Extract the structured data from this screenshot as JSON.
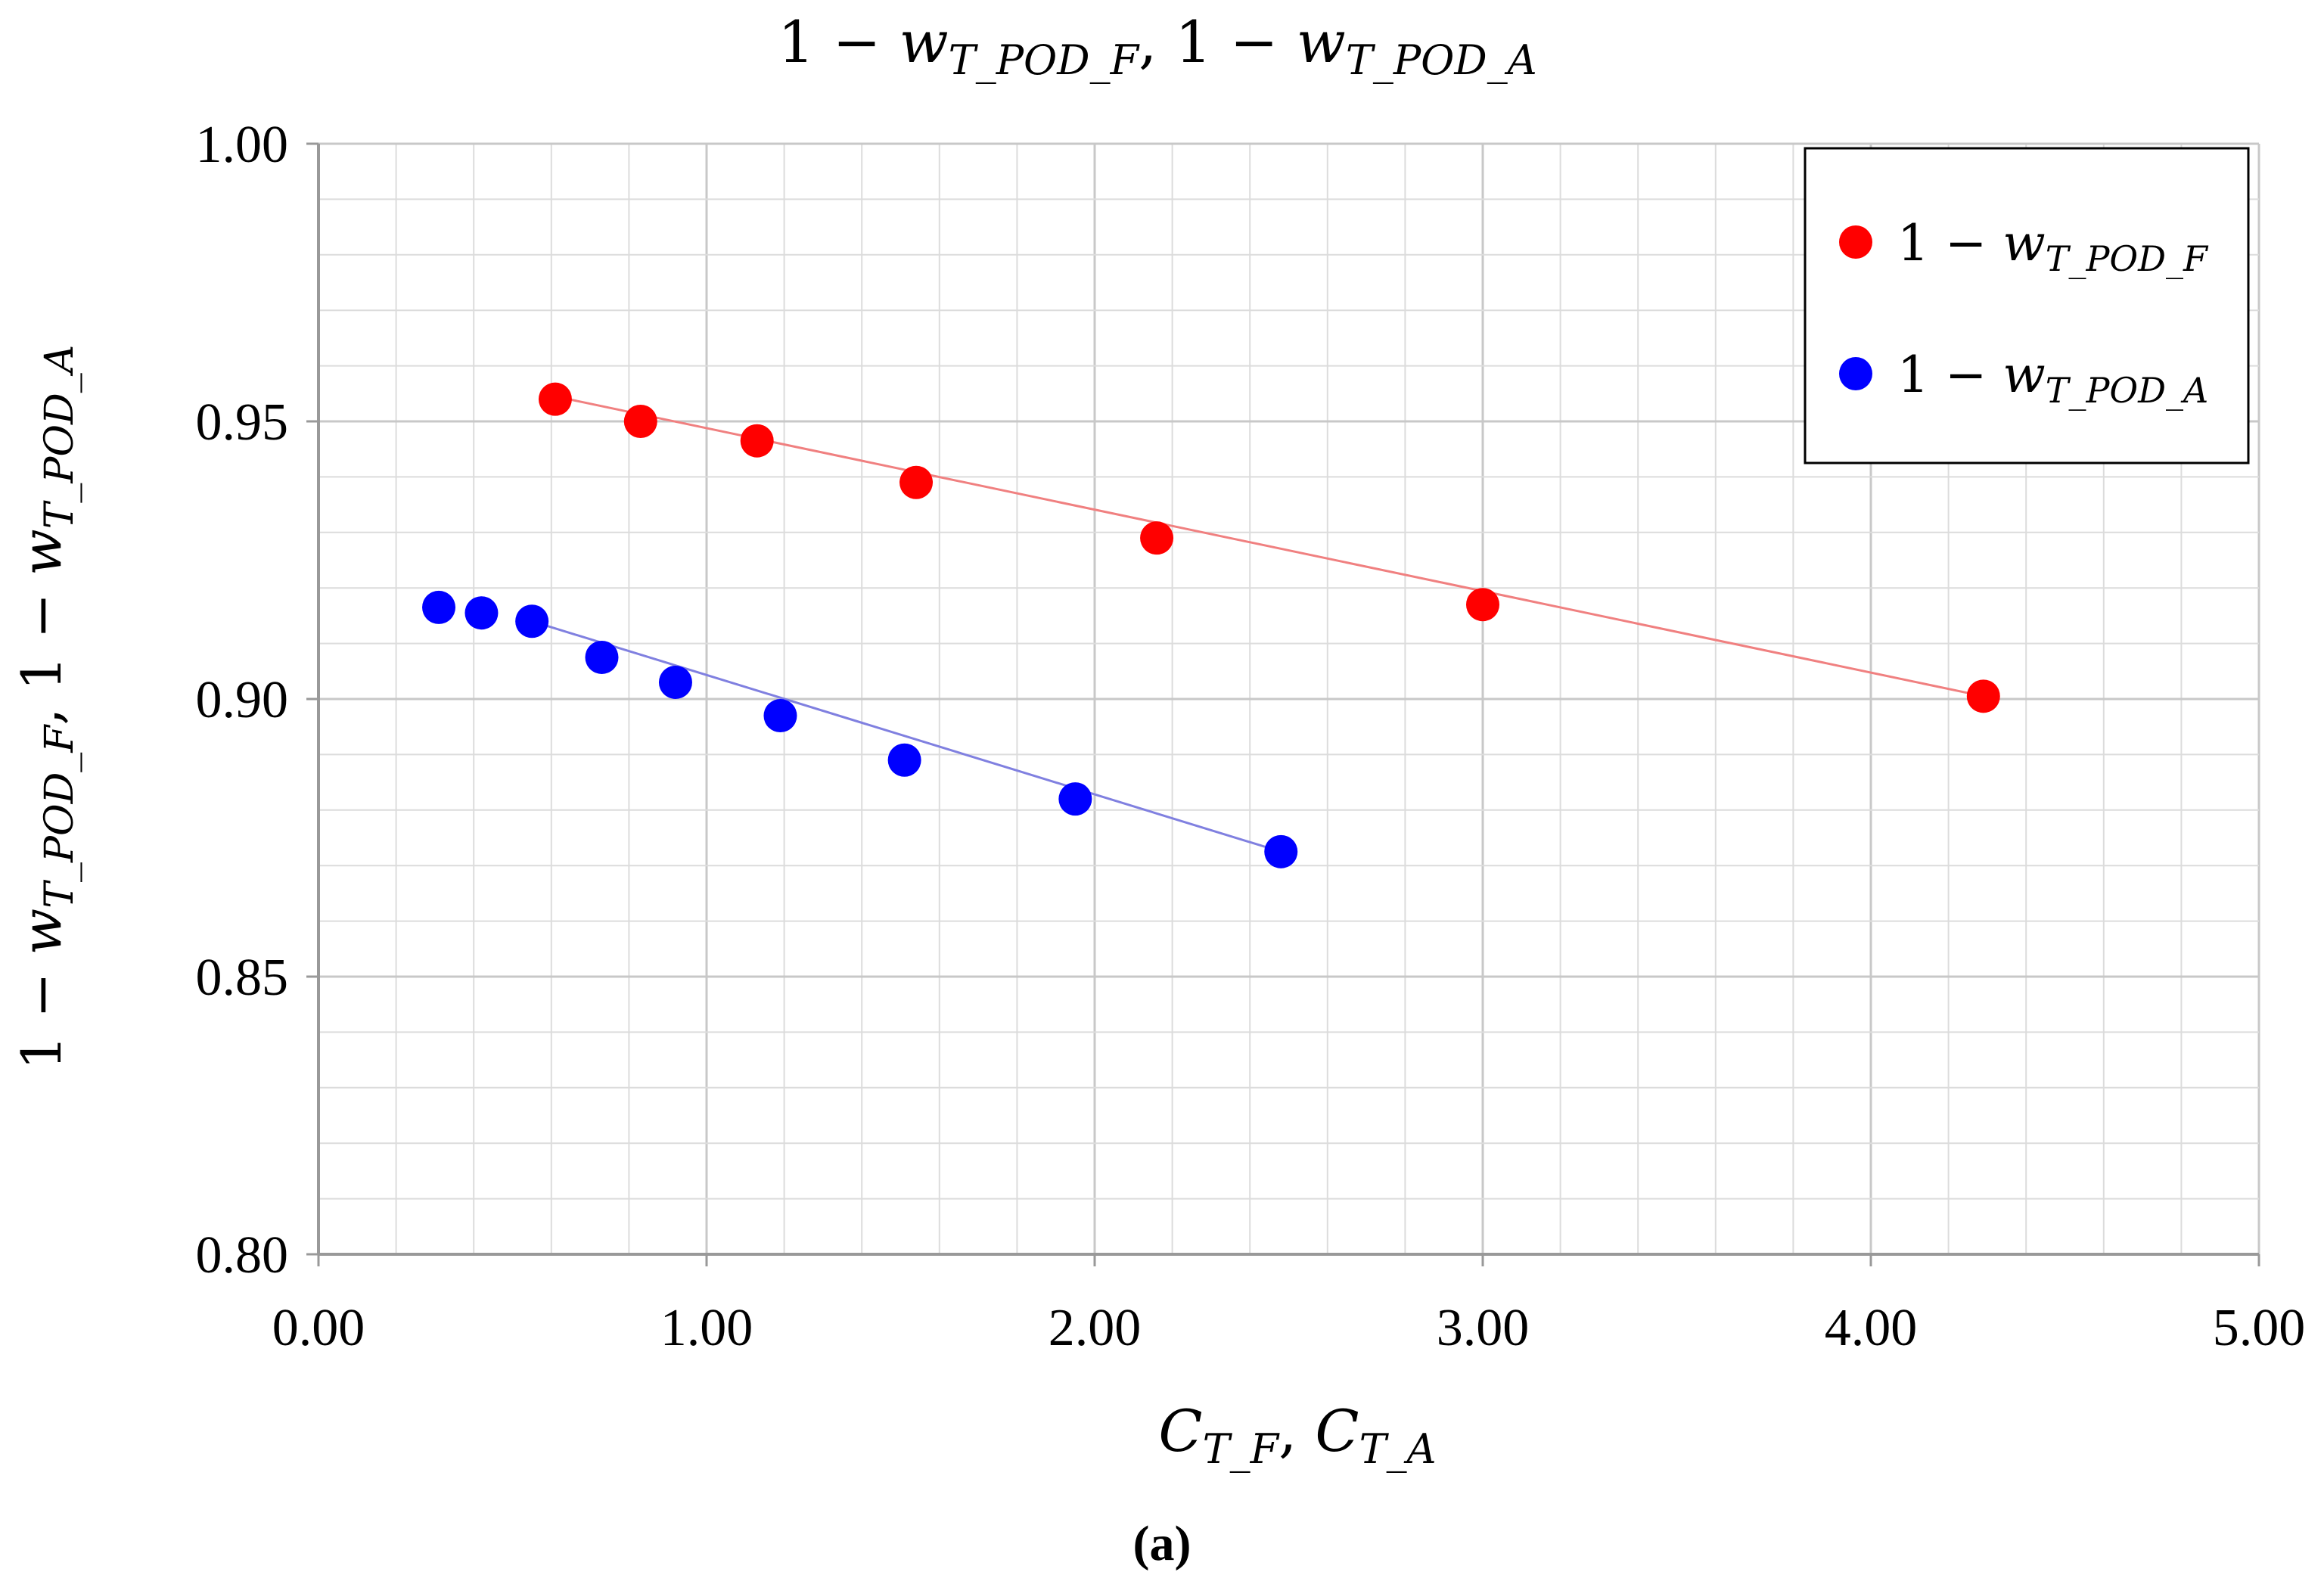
{
  "chart_data": {
    "type": "scatter",
    "title": "1 − w_T_POD_F, 1 − w_T_POD_A",
    "xlabel": "C_T_F, C_T_A",
    "ylabel": "1 − w_T_POD_F, 1 − w_T_POD_A",
    "xlim": [
      0,
      5
    ],
    "ylim": [
      0.8,
      1.0
    ],
    "x_ticks": [
      "0.00",
      "1.00",
      "2.00",
      "3.00",
      "4.00",
      "5.00"
    ],
    "y_ticks": [
      "0.80",
      "0.85",
      "0.90",
      "0.95",
      "1.00"
    ],
    "x_tick_values": [
      0,
      1,
      2,
      3,
      4,
      5
    ],
    "y_tick_values": [
      0.8,
      0.85,
      0.9,
      0.95,
      1.0
    ],
    "grid": true,
    "legend_position": "top-right",
    "caption": "(a)",
    "series": [
      {
        "name": "1 − w_T_POD_F",
        "color": "#ff0000",
        "line_color": "#f08080",
        "x": [
          0.61,
          0.83,
          1.13,
          1.54,
          2.16,
          3.0,
          4.29
        ],
        "y": [
          0.954,
          0.95,
          0.9465,
          0.939,
          0.929,
          0.917,
          0.9005
        ],
        "trendline": {
          "x": [
            0.61,
            4.29
          ],
          "y": [
            0.9545,
            0.9005
          ]
        }
      },
      {
        "name": "1 − w_T_POD_A",
        "color": "#0000ff",
        "line_color": "#8080e0",
        "x": [
          0.31,
          0.42,
          0.55,
          0.73,
          0.92,
          1.19,
          1.51,
          1.95,
          2.48
        ],
        "y": [
          0.9165,
          0.9155,
          0.914,
          0.9075,
          0.903,
          0.897,
          0.889,
          0.882,
          0.8725
        ],
        "trendline": {
          "x": [
            0.55,
            2.48
          ],
          "y": [
            0.914,
            0.8725
          ]
        }
      }
    ]
  },
  "labels": {
    "one_minus": "1 − ",
    "w": "w",
    "sub_pod_f": "T_POD_F",
    "sub_pod_a": "T_POD_A",
    "comma": ", ",
    "c": "C",
    "sub_tf": "T_F",
    "sub_ta": "T_A"
  },
  "colors": {
    "grid_major": "#c8c8c8",
    "grid_minor": "#dcdcdc",
    "axis": "#999999"
  }
}
